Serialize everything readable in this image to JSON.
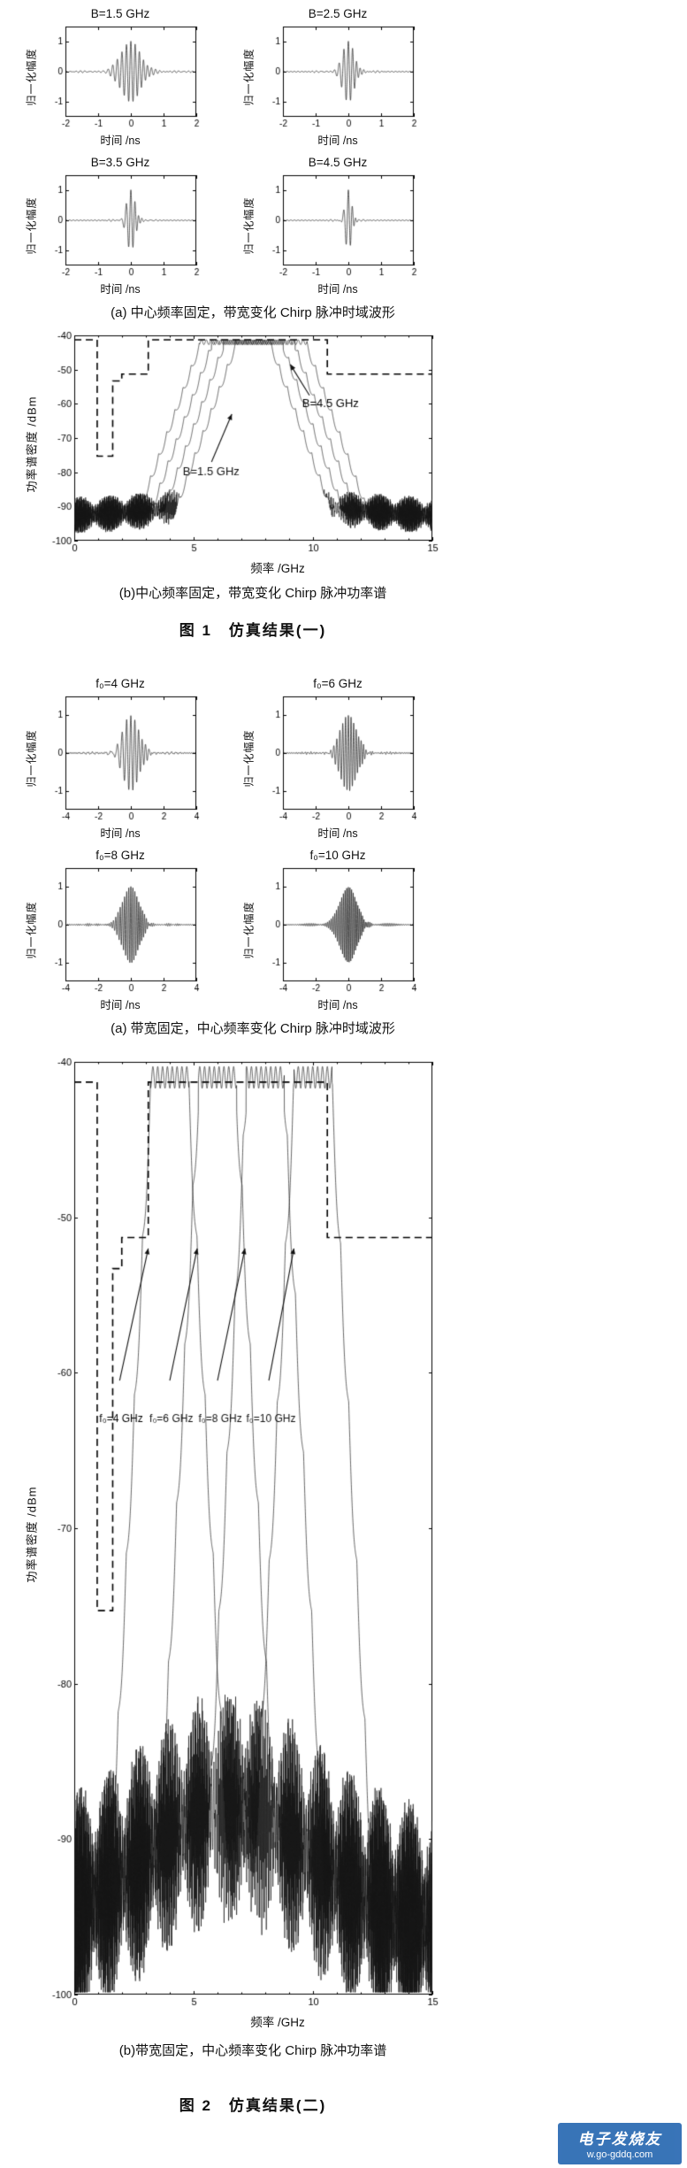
{
  "figure1": {
    "caption_a": "(a) 中心频率固定，带宽变化 Chirp 脉冲时域波形",
    "caption_b": "(b)中心频率固定，带宽变化 Chirp 脉冲功率谱",
    "title": "图 1　仿真结果(一)"
  },
  "figure2": {
    "caption_a": "(a) 带宽固定，中心频率变化 Chirp 脉冲时域波形",
    "caption_b": "(b)带宽固定，中心频率变化 Chirp 脉冲功率谱",
    "title": "图 2　仿真结果(二)"
  },
  "watermark": {
    "name": "电子发烧友",
    "url": "w.go-gddq.com",
    "bg_color": "#2e6db4",
    "text_color": "#ffffff"
  },
  "chart_data": [
    {
      "id": "fig1a",
      "type": "line",
      "kind": "chirp_time_waveforms",
      "xlabel": "时间 /ns",
      "ylabel": "归一化幅度",
      "xlim": [
        -2,
        2
      ],
      "ylim": [
        -1.5,
        1.5
      ],
      "xticks": [
        -2,
        -1,
        0,
        1,
        2
      ],
      "yticks": [
        -1,
        0,
        1
      ],
      "subplots": [
        {
          "title": "B=1.5 GHz",
          "f0": 7.5,
          "B": 1.5,
          "tau": 0.3
        },
        {
          "title": "B=2.5 GHz",
          "f0": 7.5,
          "B": 2.5,
          "tau": 0.18
        },
        {
          "title": "B=3.5 GHz",
          "f0": 7.5,
          "B": 3.5,
          "tau": 0.13
        },
        {
          "title": "B=4.5 GHz",
          "f0": 7.5,
          "B": 4.5,
          "tau": 0.1
        }
      ]
    },
    {
      "id": "fig1b",
      "type": "line",
      "kind": "power_spectral_density",
      "xlabel": "频率 /GHz",
      "ylabel": "功率谱密度 /dBm",
      "xlim": [
        0,
        15
      ],
      "ylim": [
        -100,
        -40
      ],
      "xticks": [
        0,
        5,
        10,
        15
      ],
      "yticks": [
        -100,
        -90,
        -80,
        -70,
        -60,
        -50,
        -40
      ],
      "mask": [
        [
          0,
          -41.3
        ],
        [
          0.96,
          -41.3
        ],
        [
          0.96,
          -75.3
        ],
        [
          1.61,
          -75.3
        ],
        [
          1.61,
          -53.3
        ],
        [
          1.99,
          -53.3
        ],
        [
          1.99,
          -51.3
        ],
        [
          3.1,
          -51.3
        ],
        [
          3.1,
          -41.3
        ],
        [
          10.6,
          -41.3
        ],
        [
          10.6,
          -51.3
        ],
        [
          15,
          -51.3
        ]
      ],
      "series": [
        {
          "name": "B=1.5 GHz",
          "f0": 7.5,
          "B": 1.5,
          "peak": -42,
          "slope": 19,
          "floor": -93,
          "bump": 4,
          "bumpc": 7.5,
          "bumpw": 5,
          "namp": 3.5
        },
        {
          "name": "B=2.5 GHz",
          "f0": 7.5,
          "B": 2.5,
          "peak": -42,
          "slope": 19,
          "floor": -93,
          "bump": 4,
          "bumpc": 7.5,
          "bumpw": 5,
          "namp": 3.5
        },
        {
          "name": "B=3.5 GHz",
          "f0": 7.5,
          "B": 3.5,
          "peak": -42,
          "slope": 19,
          "floor": -93,
          "bump": 4,
          "bumpc": 7.5,
          "bumpw": 5,
          "namp": 3.5
        },
        {
          "name": "B=4.5 GHz",
          "f0": 7.5,
          "B": 4.5,
          "peak": -42,
          "slope": 19,
          "floor": -93,
          "bump": 4,
          "bumpc": 7.5,
          "bumpw": 5,
          "namp": 3.5
        }
      ],
      "annotations": [
        {
          "text": "B=4.5 GHz",
          "tx": 9.55,
          "ty": -60,
          "x1": 9.85,
          "y1": -57.5,
          "x2": 9.05,
          "y2": -48.5
        },
        {
          "text": "B=1.5 GHz",
          "tx": 4.55,
          "ty": -80,
          "x1": 5.75,
          "y1": -77,
          "x2": 6.6,
          "y2": -63
        }
      ]
    },
    {
      "id": "fig2a",
      "type": "line",
      "kind": "chirp_time_waveforms",
      "xlabel": "时间 /ns",
      "ylabel": "归一化幅度",
      "xlim": [
        -4,
        4
      ],
      "ylim": [
        -1.5,
        1.5
      ],
      "xticks": [
        -4,
        -2,
        0,
        2,
        4
      ],
      "yticks": [
        -1,
        0,
        1
      ],
      "subplots": [
        {
          "title": "f₀=4 GHz",
          "f0": 4,
          "B": 2,
          "tau": 0.5
        },
        {
          "title": "f₀=6 GHz",
          "f0": 6,
          "B": 2,
          "tau": 0.5
        },
        {
          "title": "f₀=8 GHz",
          "f0": 8,
          "B": 2,
          "tau": 0.5
        },
        {
          "title": "f₀=10 GHz",
          "f0": 10,
          "B": 2,
          "tau": 0.5
        }
      ]
    },
    {
      "id": "fig2b",
      "type": "line",
      "kind": "power_spectral_density",
      "xlabel": "频率 /GHz",
      "ylabel": "功率谱密度 /dBm",
      "xlim": [
        0,
        15
      ],
      "ylim": [
        -100,
        -40
      ],
      "xticks": [
        0,
        5,
        10,
        15
      ],
      "yticks": [
        -100,
        -90,
        -80,
        -70,
        -60,
        -50,
        -40
      ],
      "mask": [
        [
          0,
          -41.3
        ],
        [
          0.96,
          -41.3
        ],
        [
          0.96,
          -75.3
        ],
        [
          1.61,
          -75.3
        ],
        [
          1.61,
          -53.3
        ],
        [
          1.99,
          -53.3
        ],
        [
          1.99,
          -51.3
        ],
        [
          3.1,
          -51.3
        ],
        [
          3.1,
          -41.3
        ],
        [
          10.6,
          -41.3
        ],
        [
          10.6,
          -51.3
        ],
        [
          15,
          -51.3
        ]
      ],
      "series": [
        {
          "name": "f₀=4 GHz",
          "f0": 4,
          "B": 1.6,
          "peak": -41,
          "slope": 30,
          "floor": -96,
          "bump": 8,
          "bumpc": 6.5,
          "bumpw": 5,
          "namp": 5
        },
        {
          "name": "f₀=6 GHz",
          "f0": 6,
          "B": 1.6,
          "peak": -41,
          "slope": 30,
          "floor": -96,
          "bump": 8,
          "bumpc": 6.5,
          "bumpw": 5,
          "namp": 5
        },
        {
          "name": "f₀=8 GHz",
          "f0": 8,
          "B": 1.6,
          "peak": -41,
          "slope": 30,
          "floor": -96,
          "bump": 8,
          "bumpc": 6.5,
          "bumpw": 5,
          "namp": 5
        },
        {
          "name": "f₀=10 GHz",
          "f0": 10,
          "B": 1.6,
          "peak": -41,
          "slope": 30,
          "floor": -96,
          "bump": 8,
          "bumpc": 6.5,
          "bumpw": 5,
          "namp": 5
        }
      ],
      "annotations": [
        {
          "text": "f₀=4 GHz",
          "tx": 1.05,
          "ty": -63,
          "x1": 1.9,
          "y1": -60.5,
          "x2": 3.1,
          "y2": -52
        },
        {
          "text": "f₀=6 GHz",
          "tx": 3.15,
          "ty": -63,
          "x1": 4.0,
          "y1": -60.5,
          "x2": 5.15,
          "y2": -52
        },
        {
          "text": "f₀=8 GHz",
          "tx": 5.2,
          "ty": -63,
          "x1": 6.0,
          "y1": -60.5,
          "x2": 7.15,
          "y2": -52
        },
        {
          "text": "f₀=10 GHz",
          "tx": 7.2,
          "ty": -63,
          "x1": 8.15,
          "y1": -60.5,
          "x2": 9.2,
          "y2": -52
        }
      ]
    }
  ]
}
